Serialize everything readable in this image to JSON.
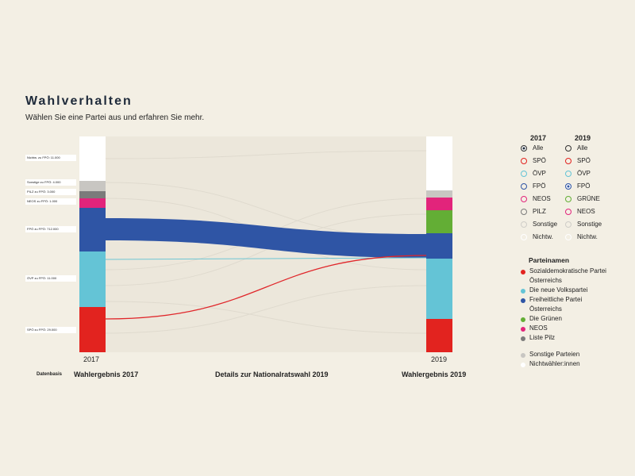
{
  "header": {
    "title": "Wahlverhalten",
    "subtitle": "Wählen Sie eine Partei aus und erfahren Sie mehr."
  },
  "flow_labels": [
    "Nichtw. zu FPÖ: 11.000",
    "Sonstige zu FPÖ: 4.000",
    "PILZ zu FPÖ: 3.000",
    "NEOS zu FPÖ: 1.000",
    "FPÖ zu FPÖ: 712.000",
    "ÖVP zu FPÖ: 11.000",
    "SPÖ zu FPÖ: 29.000"
  ],
  "axis": {
    "left": "2017",
    "right": "2019"
  },
  "footer": {
    "source": "Datenbasis",
    "left": "Wahlergebnis 2017",
    "center": "Details zur Nationalratswahl 2019",
    "right": "Wahlergebnis 2019"
  },
  "selector": {
    "col1": {
      "title": "2017",
      "options": [
        "Alle",
        "SPÖ",
        "ÖVP",
        "FPÖ",
        "NEOS",
        "PILZ",
        "Sonstige",
        "Nichtw."
      ]
    },
    "col2": {
      "title": "2019",
      "options": [
        "Alle",
        "SPÖ",
        "ÖVP",
        "FPÖ",
        "GRÜNE",
        "NEOS",
        "Sonstige",
        "Nichtw."
      ]
    }
  },
  "legend": {
    "title": "Parteinamen",
    "items": [
      "Sozialdemokratische Partei Österreichs",
      "Die neue Volkspartei",
      "Freiheitliche Partei Österreichs",
      "Die Grünen",
      "NEOS",
      "Liste Pilz"
    ],
    "extra": [
      "Sonstige Parteien",
      "Nichtwähler:innen"
    ]
  }
}
